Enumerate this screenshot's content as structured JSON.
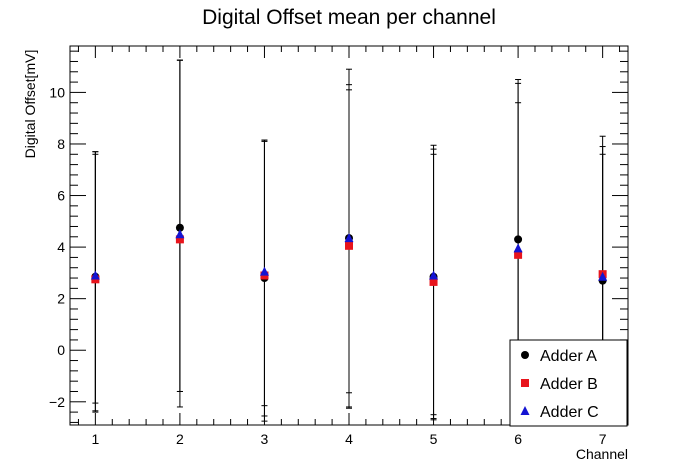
{
  "chart_data": {
    "type": "scatter",
    "title": "Digital Offset mean per channel",
    "xlabel": "Channel",
    "ylabel": "Digital Offset[mV]",
    "xlim": [
      0.7,
      7.3
    ],
    "ylim": [
      -2.9,
      11.8
    ],
    "x_ticks": [
      1,
      2,
      3,
      4,
      5,
      6,
      7
    ],
    "y_ticks": [
      -2,
      0,
      2,
      4,
      6,
      8,
      10
    ],
    "grid": false,
    "legend_position": "bottom-right",
    "series": [
      {
        "name": "Adder A",
        "marker": "circle",
        "color": "#000000",
        "x": [
          1,
          2,
          3,
          4,
          5,
          6,
          7
        ],
        "y": [
          2.85,
          4.75,
          2.8,
          4.35,
          2.85,
          4.3,
          2.7
        ],
        "y_err_low": [
          5.25,
          6.95,
          5.55,
          6.55,
          5.55,
          6.65,
          5.5
        ],
        "y_err_high": [
          4.85,
          6.5,
          5.35,
          5.95,
          5.1,
          5.3,
          4.9
        ]
      },
      {
        "name": "Adder B",
        "marker": "square",
        "color": "#e8141c",
        "x": [
          1,
          2,
          3,
          4,
          5,
          6,
          7
        ],
        "y": [
          2.75,
          4.3,
          2.9,
          4.05,
          2.65,
          3.7,
          2.95
        ],
        "y_err_low": [
          5.1,
          5.9,
          5.45,
          5.7,
          5.3,
          6.4,
          5.6
        ],
        "y_err_high": [
          4.95,
          6.95,
          5.2,
          6.05,
          4.95,
          6.65,
          4.95
        ]
      },
      {
        "name": "Adder C",
        "marker": "triangle",
        "color": "#1414d2",
        "x": [
          1,
          2,
          3,
          4,
          5,
          6,
          7
        ],
        "y": [
          2.9,
          4.5,
          3.05,
          4.35,
          2.9,
          3.95,
          2.85
        ],
        "y_err_low": [
          4.95,
          6.1,
          5.2,
          6.6,
          5.4,
          6.4,
          5.4
        ],
        "y_err_high": [
          4.7,
          6.75,
          5.1,
          6.55,
          4.9,
          6.55,
          5.45
        ]
      }
    ]
  }
}
